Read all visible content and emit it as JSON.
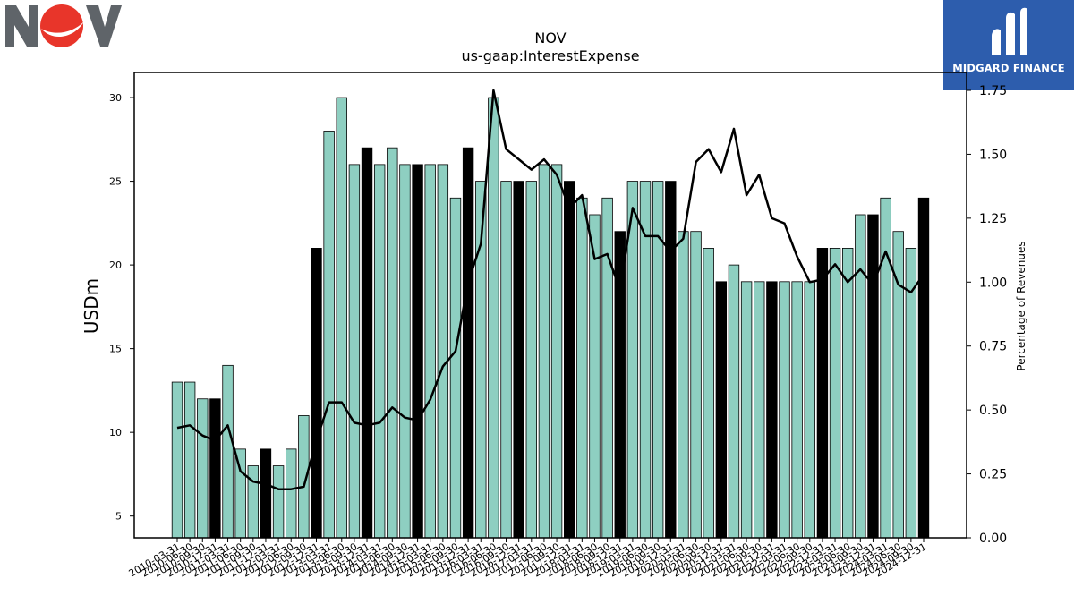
{
  "logos": {
    "company_logo": "NOV",
    "brand": "MIDGARD FINANCE"
  },
  "chart_data": {
    "type": "bar",
    "title": "NOV",
    "subtitle": "us-gaap:InterestExpense",
    "ylabel": "USDm",
    "y2label": "Percentage of Revenues",
    "ylim": [
      3.7,
      31.5
    ],
    "y2lim": [
      0,
      1.82
    ],
    "yticks": [
      5,
      10,
      15,
      20,
      25,
      30
    ],
    "y2ticks": [
      0.0,
      0.25,
      0.5,
      0.75,
      1.0,
      1.25,
      1.5,
      1.75
    ],
    "colors": {
      "quarter_bar": "#8ecfc1",
      "annual_bar": "#000000",
      "line": "#000000"
    },
    "categories": [
      "2010-03-31",
      "2010-06-30",
      "2010-09-30",
      "2010-12-31",
      "2011-03-31",
      "2011-06-30",
      "2011-09-30",
      "2011-12-31",
      "2012-03-31",
      "2012-06-30",
      "2012-09-30",
      "2012-12-31",
      "2013-03-31",
      "2013-06-30",
      "2013-09-30",
      "2013-12-31",
      "2014-03-31",
      "2014-06-30",
      "2014-09-30",
      "2014-12-31",
      "2015-03-31",
      "2015-06-30",
      "2015-09-30",
      "2015-12-31",
      "2016-03-31",
      "2016-06-30",
      "2016-09-30",
      "2016-12-31",
      "2017-03-31",
      "2017-06-30",
      "2017-09-30",
      "2017-12-31",
      "2018-03-31",
      "2018-06-30",
      "2018-09-30",
      "2018-12-31",
      "2019-03-31",
      "2019-06-30",
      "2019-09-30",
      "2019-12-31",
      "2020-03-31",
      "2020-06-30",
      "2020-09-30",
      "2020-12-31",
      "2021-03-31",
      "2021-06-30",
      "2021-09-30",
      "2021-12-31",
      "2022-03-31",
      "2022-06-30",
      "2022-09-30",
      "2022-12-31",
      "2023-03-31",
      "2023-06-30",
      "2023-09-30",
      "2023-12-31",
      "2024-03-31",
      "2024-06-30",
      "2024-09-30",
      "2024-12-31"
    ],
    "series": [
      {
        "values": [
          13,
          13,
          12,
          12,
          14,
          9,
          8,
          9,
          8,
          9,
          11,
          21,
          28,
          30,
          26,
          27,
          26,
          27,
          26,
          26,
          26,
          26,
          24,
          27,
          25,
          30,
          25,
          25,
          25,
          26,
          26,
          25,
          24,
          23,
          24,
          22,
          25,
          25,
          25,
          25,
          22,
          22,
          21,
          19,
          20,
          19,
          19,
          19,
          19,
          19,
          19,
          21,
          21,
          21,
          23,
          23,
          24,
          22,
          21,
          24
        ],
        "annual": [
          false,
          false,
          false,
          true,
          false,
          false,
          false,
          true,
          false,
          false,
          false,
          true,
          false,
          false,
          false,
          true,
          false,
          false,
          false,
          true,
          false,
          false,
          false,
          true,
          false,
          false,
          false,
          true,
          false,
          false,
          false,
          true,
          false,
          false,
          false,
          true,
          false,
          false,
          false,
          true,
          false,
          false,
          false,
          true,
          false,
          false,
          false,
          true,
          false,
          false,
          false,
          true,
          false,
          false,
          false,
          true,
          false,
          false,
          false,
          true
        ]
      },
      {
        "axis": "right",
        "values": [
          0.43,
          0.44,
          0.4,
          0.38,
          0.44,
          0.26,
          0.22,
          0.21,
          0.19,
          0.19,
          0.2,
          0.38,
          0.53,
          0.53,
          0.45,
          0.44,
          0.45,
          0.51,
          0.47,
          0.46,
          0.54,
          0.67,
          0.73,
          1.0,
          1.15,
          1.75,
          1.52,
          1.48,
          1.44,
          1.48,
          1.42,
          1.29,
          1.34,
          1.09,
          1.11,
          0.97,
          1.29,
          1.18,
          1.18,
          1.12,
          1.17,
          1.47,
          1.52,
          1.43,
          1.6,
          1.34,
          1.42,
          1.25,
          1.23,
          1.1,
          1.0,
          1.01,
          1.07,
          1.0,
          1.05,
          0.99,
          1.12,
          0.99,
          0.96,
          1.03
        ]
      }
    ]
  }
}
